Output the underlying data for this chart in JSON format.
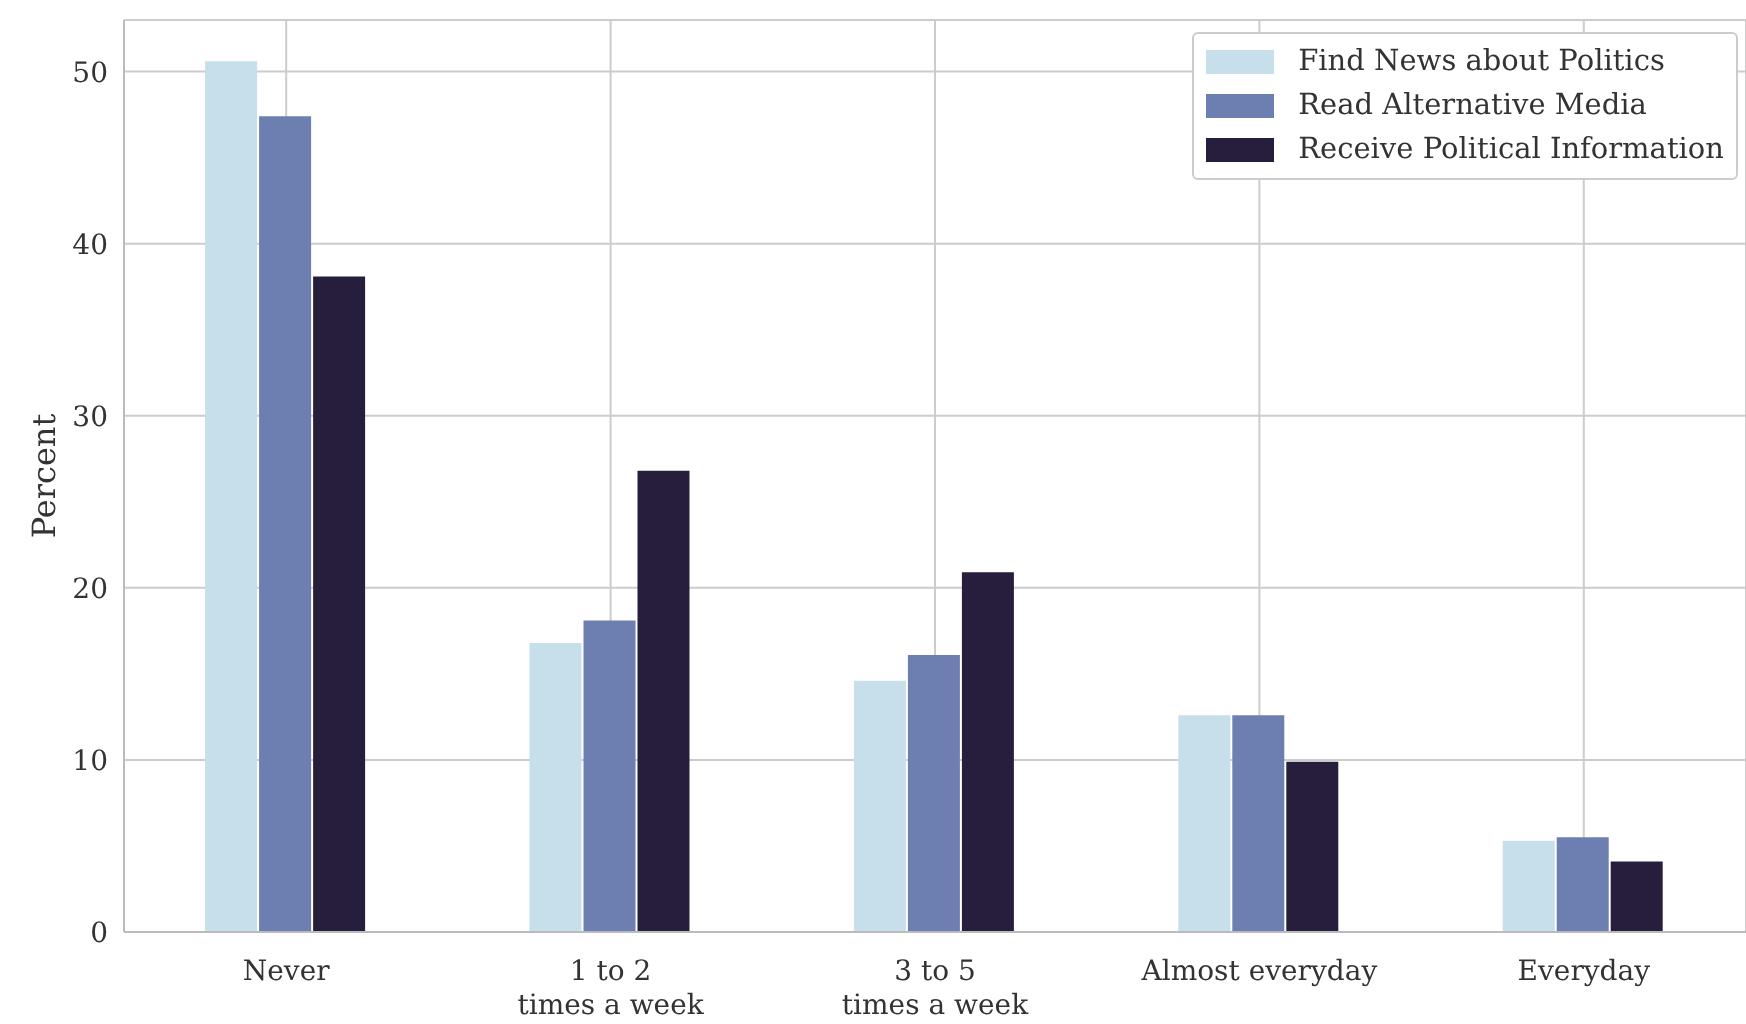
{
  "chart_data": {
    "type": "bar",
    "ylabel": "Percent",
    "categories": [
      "Never",
      "1 to 2\ntimes a week",
      "3 to 5\ntimes a week",
      "Almost everyday",
      "Everyday"
    ],
    "series": [
      {
        "name": "Find News about Politics",
        "color": "#c6dfea",
        "values": [
          50.6,
          16.8,
          14.6,
          12.6,
          5.3
        ]
      },
      {
        "name": "Read Alternative Media",
        "color": "#6d7fb0",
        "values": [
          47.4,
          18.1,
          16.1,
          12.6,
          5.5
        ]
      },
      {
        "name": "Receive Political Information",
        "color": "#271e3e",
        "values": [
          38.1,
          26.8,
          20.9,
          9.9,
          4.1
        ]
      }
    ],
    "ylim": [
      0,
      53
    ],
    "yticks": [
      0,
      10,
      20,
      30,
      40,
      50
    ],
    "grid": true,
    "legend": "top right"
  }
}
